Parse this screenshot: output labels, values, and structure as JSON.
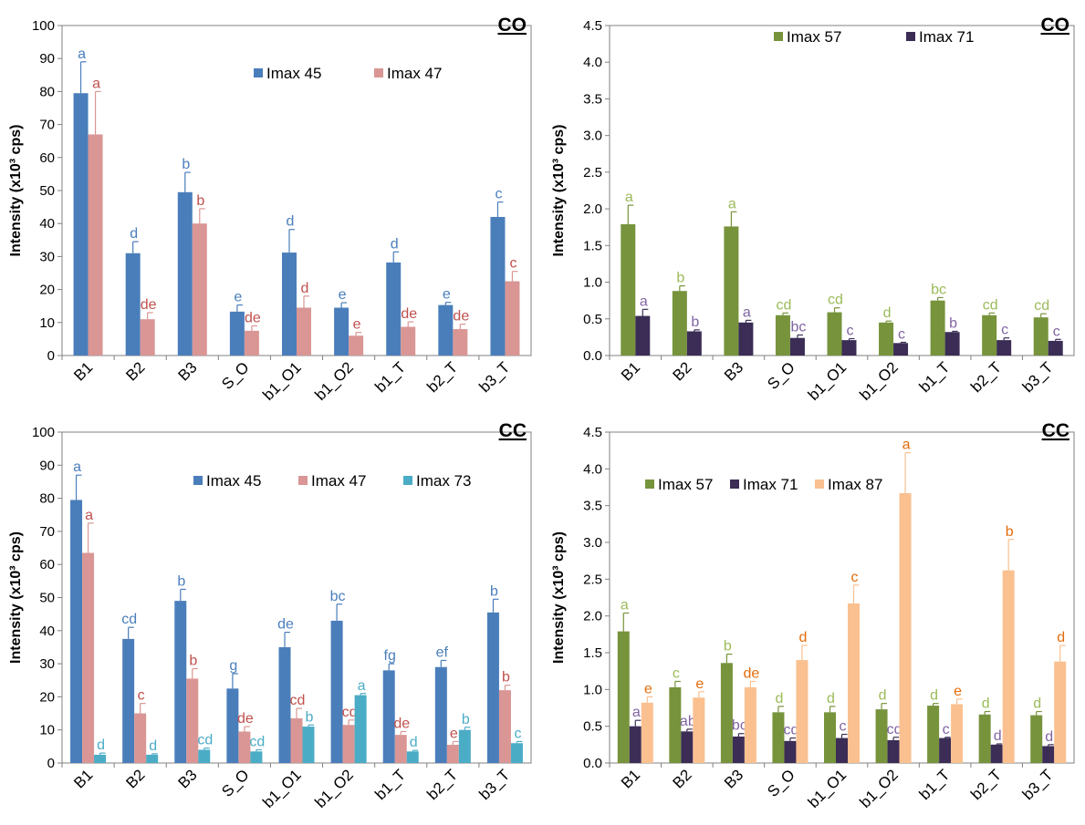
{
  "chart_data": [
    {
      "type": "bar",
      "title": "CO",
      "ylabel": "Intensity (x10³ cps)",
      "ylim": [
        0,
        100
      ],
      "yticks": [
        "0",
        "10",
        "20",
        "30",
        "40",
        "50",
        "60",
        "70",
        "80",
        "90",
        "100"
      ],
      "categories": [
        "B1",
        "B2",
        "B3",
        "S_O",
        "b1_O1",
        "b1_O2",
        "b1_T",
        "b2_T",
        "b3_T"
      ],
      "legend_position": "top-center",
      "series": [
        {
          "name": "Imax 45",
          "color": "#4a7ebb",
          "letter_color": "#4a7ebb",
          "values": [
            79.5,
            31.0,
            49.5,
            13.3,
            31.2,
            14.5,
            28.2,
            15.3,
            42.0
          ],
          "errors": [
            9.5,
            3.5,
            6.0,
            2.0,
            7.0,
            1.5,
            3.2,
            0.8,
            4.5
          ],
          "letters": [
            "a",
            "d",
            "b",
            "e",
            "d",
            "e",
            "d",
            "e",
            "c"
          ]
        },
        {
          "name": "Imax 47",
          "color": "#d99694",
          "letter_color": "#c0504d",
          "values": [
            67.0,
            11.0,
            40.0,
            7.5,
            14.5,
            6.0,
            8.7,
            8.0,
            22.5
          ],
          "errors": [
            13.0,
            2.0,
            4.5,
            1.5,
            3.5,
            1.0,
            1.5,
            1.5,
            3.0
          ],
          "letters": [
            "a",
            "de",
            "b",
            "de",
            "d",
            "e",
            "de",
            "de",
            "c"
          ]
        }
      ]
    },
    {
      "type": "bar",
      "title": "CO",
      "ylabel": "Intensity (x10³ cps)",
      "ylim": [
        0,
        4.5
      ],
      "yticks": [
        "0.0",
        "0.5",
        "1.0",
        "1.5",
        "2.0",
        "2.5",
        "3.0",
        "3.5",
        "4.0",
        "4.5"
      ],
      "categories": [
        "B1",
        "B2",
        "B3",
        "S_O",
        "b1_O1",
        "b1_O2",
        "b1_T",
        "b2_T",
        "b3_T"
      ],
      "legend_position": "top-center",
      "series": [
        {
          "name": "Imax 57",
          "color": "#77933c",
          "letter_color": "#9bbb59",
          "values": [
            1.79,
            0.88,
            1.76,
            0.55,
            0.59,
            0.45,
            0.75,
            0.55,
            0.52
          ],
          "errors": [
            0.26,
            0.07,
            0.2,
            0.03,
            0.06,
            0.02,
            0.04,
            0.03,
            0.05
          ],
          "letters": [
            "a",
            "b",
            "a",
            "cd",
            "cd",
            "d",
            "bc",
            "cd",
            "cd"
          ]
        },
        {
          "name": "Imax 71",
          "color": "#3b2d55",
          "letter_color": "#8064a2",
          "values": [
            0.54,
            0.33,
            0.45,
            0.24,
            0.21,
            0.17,
            0.32,
            0.21,
            0.2
          ],
          "errors": [
            0.09,
            0.02,
            0.03,
            0.04,
            0.02,
            0.01,
            0.01,
            0.03,
            0.02
          ],
          "letters": [
            "a",
            "b",
            "a",
            "bc",
            "c",
            "c",
            "b",
            "c",
            "c"
          ]
        }
      ]
    },
    {
      "type": "bar",
      "title": "CC",
      "ylabel": "Intensity (x10³ cps)",
      "ylim": [
        0,
        100
      ],
      "yticks": [
        "0",
        "10",
        "20",
        "30",
        "40",
        "50",
        "60",
        "70",
        "80",
        "90",
        "100"
      ],
      "categories": [
        "B1",
        "B2",
        "B3",
        "S_O",
        "b1_O1",
        "b1_O2",
        "b1_T",
        "b2_T",
        "b3_T"
      ],
      "legend_position": "top-right",
      "series": [
        {
          "name": "Imax 45",
          "color": "#4a7ebb",
          "letter_color": "#4a7ebb",
          "values": [
            79.5,
            37.5,
            49.0,
            22.5,
            35.0,
            43.0,
            28.0,
            29.0,
            45.5
          ],
          "errors": [
            7.5,
            3.5,
            3.5,
            4.5,
            4.5,
            5.0,
            2.0,
            2.0,
            4.0
          ],
          "letters": [
            "a",
            "cd",
            "b",
            "g",
            "de",
            "bc",
            "fg",
            "ef",
            "b"
          ]
        },
        {
          "name": "Imax 47",
          "color": "#d99694",
          "letter_color": "#c0504d",
          "values": [
            63.5,
            15.0,
            25.5,
            9.5,
            13.5,
            11.5,
            8.5,
            5.5,
            22.0
          ],
          "errors": [
            9.0,
            3.0,
            3.0,
            1.5,
            3.0,
            1.5,
            1.0,
            1.0,
            1.5
          ],
          "letters": [
            "a",
            "c",
            "b",
            "de",
            "cd",
            "cd",
            "de",
            "e",
            "b"
          ]
        },
        {
          "name": "Imax 73",
          "color": "#4bacc6",
          "letter_color": "#4bacc6",
          "values": [
            2.5,
            2.5,
            4.0,
            3.5,
            11.0,
            20.5,
            3.5,
            10.0,
            6.0
          ],
          "errors": [
            0.5,
            0.3,
            0.5,
            0.5,
            0.5,
            0.5,
            0.3,
            0.8,
            0.5
          ],
          "letters": [
            "d",
            "d",
            "cd",
            "cd",
            "b",
            "a",
            "d",
            "b",
            "c"
          ]
        }
      ]
    },
    {
      "type": "bar",
      "title": "CC",
      "ylabel": "Intensity (x10³ cps)",
      "ylim": [
        0,
        4.5
      ],
      "yticks": [
        "0.0",
        "0.5",
        "1.0",
        "1.5",
        "2.0",
        "2.5",
        "3.0",
        "3.5",
        "4.0",
        "4.5"
      ],
      "categories": [
        "B1",
        "B2",
        "B3",
        "S_O",
        "b1_O1",
        "b1_O2",
        "b1_T",
        "b2_T",
        "b3_T"
      ],
      "legend_position": "top-left",
      "series": [
        {
          "name": "Imax 57",
          "color": "#77933c",
          "letter_color": "#9bbb59",
          "values": [
            1.79,
            1.03,
            1.36,
            0.69,
            0.69,
            0.73,
            0.78,
            0.66,
            0.65
          ],
          "errors": [
            0.25,
            0.08,
            0.12,
            0.08,
            0.08,
            0.08,
            0.03,
            0.04,
            0.05
          ],
          "letters": [
            "a",
            "c",
            "b",
            "d",
            "d",
            "d",
            "d",
            "d",
            "d"
          ]
        },
        {
          "name": "Imax 71",
          "color": "#3b2d55",
          "letter_color": "#8064a2",
          "values": [
            0.5,
            0.43,
            0.36,
            0.3,
            0.34,
            0.31,
            0.34,
            0.25,
            0.23
          ],
          "errors": [
            0.08,
            0.03,
            0.04,
            0.04,
            0.05,
            0.04,
            0.01,
            0.01,
            0.02
          ],
          "letters": [
            "a",
            "ab",
            "bc",
            "cd",
            "c",
            "cd",
            "c",
            "d",
            "d"
          ]
        },
        {
          "name": "Imax 87",
          "color": "#fac090",
          "letter_color": "#e46c0a",
          "values": [
            0.82,
            0.89,
            1.03,
            1.4,
            2.17,
            3.67,
            0.8,
            2.62,
            1.38
          ],
          "errors": [
            0.08,
            0.08,
            0.08,
            0.2,
            0.25,
            0.55,
            0.07,
            0.42,
            0.22
          ],
          "letters": [
            "e",
            "e",
            "de",
            "d",
            "c",
            "a",
            "e",
            "b",
            "d"
          ]
        }
      ]
    }
  ]
}
